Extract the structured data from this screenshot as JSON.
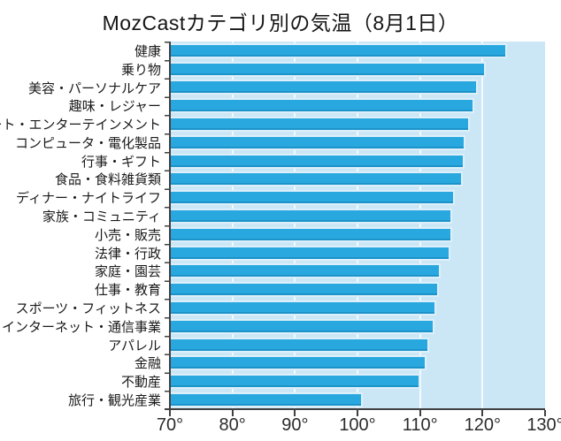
{
  "title": "MozCastカテゴリ別の気温（8月1日）",
  "chart_data": {
    "type": "bar",
    "orientation": "horizontal",
    "title": "MozCastカテゴリ別の気温（8月1日）",
    "unit": "°",
    "categories": [
      "健康",
      "乗り物",
      "美容・パーソナルケア",
      "趣味・レジャー",
      "アート・エンターテインメント",
      "コンピュータ・電化製品",
      "行事・ギフト",
      "食品・食料雑貨類",
      "ディナー・ナイトライフ",
      "家族・コミュニティ",
      "小売・販売",
      "法律・行政",
      "家庭・園芸",
      "仕事・教育",
      "スポーツ・フィットネス",
      "インターネット・通信事業",
      "アパレル",
      "金融",
      "不動産",
      "旅行・観光産業"
    ],
    "values": [
      123.9,
      120.5,
      119.3,
      118.7,
      118.0,
      117.2,
      117.1,
      116.9,
      115.6,
      115.2,
      115.1,
      114.9,
      113.3,
      113.0,
      112.6,
      112.3,
      111.4,
      111.0,
      110.0,
      100.9
    ],
    "xlim": [
      70,
      130
    ],
    "x_tick_values": [
      70,
      80,
      90,
      100,
      110,
      120,
      130
    ],
    "x_tick_labels": [
      "70°",
      "80°",
      "90°",
      "100°",
      "110°",
      "120°",
      "130°"
    ],
    "grid": true,
    "legend_position": "none",
    "colors": {
      "bar": "#29a8e0",
      "bar_shadow": "#1c93c9",
      "bar_outline": "#ddeffa",
      "plot_background": "#cbe7f6",
      "gridline": "#f4fafd",
      "axis": "#404040",
      "text": "#1a1a1a"
    }
  }
}
